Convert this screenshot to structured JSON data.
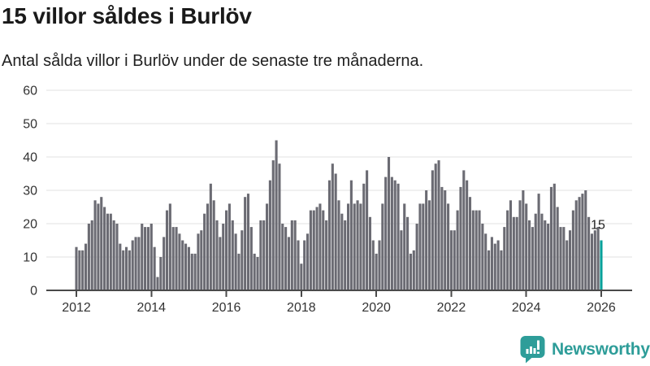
{
  "chart_data": {
    "type": "bar",
    "title": "15 villor såldes i Burlöv",
    "subtitle": "Antal sålda villor i Burlöv under de senaste tre månaderna.",
    "x_unit": "month",
    "x_start": "2012-01",
    "x_end": "2026-01",
    "x_tick_labels": [
      "2012",
      "2014",
      "2016",
      "2018",
      "2020",
      "2022",
      "2024",
      "2026"
    ],
    "x_tick_interval_months": 24,
    "y_ticks": [
      0,
      10,
      20,
      30,
      40,
      50,
      60
    ],
    "ylim": [
      0,
      60
    ],
    "grid": "horizontal",
    "legend": "none",
    "highlight_last": true,
    "last_value_label": "15",
    "values": [
      13,
      12,
      12,
      14,
      20,
      21,
      27,
      26,
      28,
      25,
      23,
      23,
      21,
      20,
      14,
      12,
      13,
      12,
      15,
      16,
      16,
      20,
      19,
      19,
      20,
      13,
      4,
      10,
      16,
      24,
      26,
      19,
      19,
      17,
      15,
      14,
      13,
      11,
      11,
      17,
      18,
      23,
      26,
      32,
      27,
      21,
      16,
      20,
      24,
      26,
      21,
      17,
      11,
      18,
      28,
      29,
      19,
      11,
      10,
      21,
      21,
      26,
      33,
      39,
      45,
      38,
      20,
      19,
      16,
      21,
      21,
      15,
      8,
      15,
      17,
      24,
      24,
      25,
      26,
      24,
      21,
      33,
      38,
      35,
      27,
      23,
      21,
      26,
      33,
      26,
      27,
      26,
      32,
      36,
      22,
      15,
      11,
      15,
      26,
      34,
      40,
      34,
      33,
      32,
      18,
      26,
      22,
      11,
      12,
      20,
      26,
      26,
      30,
      27,
      36,
      38,
      39,
      31,
      30,
      26,
      18,
      18,
      24,
      31,
      36,
      33,
      28,
      24,
      24,
      24,
      20,
      17,
      12,
      16,
      14,
      15,
      12,
      19,
      24,
      27,
      22,
      22,
      27,
      30,
      26,
      21,
      19,
      23,
      29,
      23,
      21,
      20,
      31,
      32,
      25,
      19,
      19,
      15,
      18,
      24,
      27,
      28,
      29,
      30,
      22,
      17,
      18,
      19,
      15
    ]
  },
  "footer": {
    "brand": "Newsworthy"
  },
  "colors": {
    "background": "#ffffff",
    "bar": "#6b6b73",
    "highlight": "#08a09a",
    "grid": "#e0e0e0",
    "axis": "#4a4a4a",
    "title_text": "#1a1a1a",
    "subtitle_text": "#212121",
    "tick_text": "#333333",
    "annotation_text": "#222222",
    "brand": "#2e9d99"
  }
}
